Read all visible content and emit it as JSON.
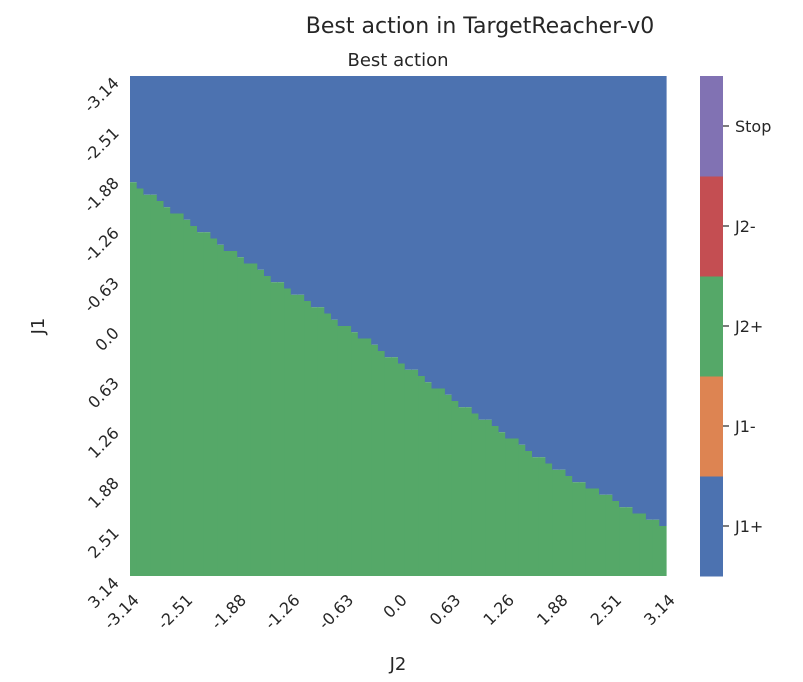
{
  "chart_data": {
    "type": "heatmap",
    "title": "Best action in TargetReacher-v0",
    "subtitle": "Best action",
    "xlabel": "J2",
    "ylabel": "J1",
    "x_ticks": [
      "-3.14",
      "-2.51",
      "-1.88",
      "-1.26",
      "-0.63",
      "0.0",
      "0.63",
      "1.26",
      "1.88",
      "2.51",
      "3.14"
    ],
    "y_ticks": [
      "-3.14",
      "-2.51",
      "-1.88",
      "-1.26",
      "-0.63",
      "0.0",
      "0.63",
      "1.26",
      "1.88",
      "2.51",
      "3.14"
    ],
    "xlim": [
      -3.14,
      3.14
    ],
    "ylim": [
      -3.14,
      3.14
    ],
    "y_inverted": true,
    "categories": [
      {
        "label": "J1+",
        "color": "#4c72b0"
      },
      {
        "label": "J1-",
        "color": "#dd8452"
      },
      {
        "label": "J2+",
        "color": "#55a868"
      },
      {
        "label": "J2-",
        "color": "#c44e52"
      },
      {
        "label": "Stop",
        "color": "#8172b3"
      }
    ],
    "grid_size": 80,
    "decision_boundary": {
      "description": "Cells with J1 below the boundary value (larger J1) choose J2+, cells above choose J1+",
      "below_label": "J2+",
      "above_label": "J1+",
      "points": [
        {
          "J2": -3.14,
          "J1": -1.82
        },
        {
          "J2": -1.88,
          "J1": -0.89
        },
        {
          "J2": 0.0,
          "J1": 0.44
        },
        {
          "J2": 1.88,
          "J1": 1.81
        },
        {
          "J2": 3.14,
          "J1": 2.54
        }
      ]
    },
    "colorbar": {
      "position": "right",
      "labels": [
        "Stop",
        "J2-",
        "J2+",
        "J1-",
        "J1+"
      ]
    }
  }
}
